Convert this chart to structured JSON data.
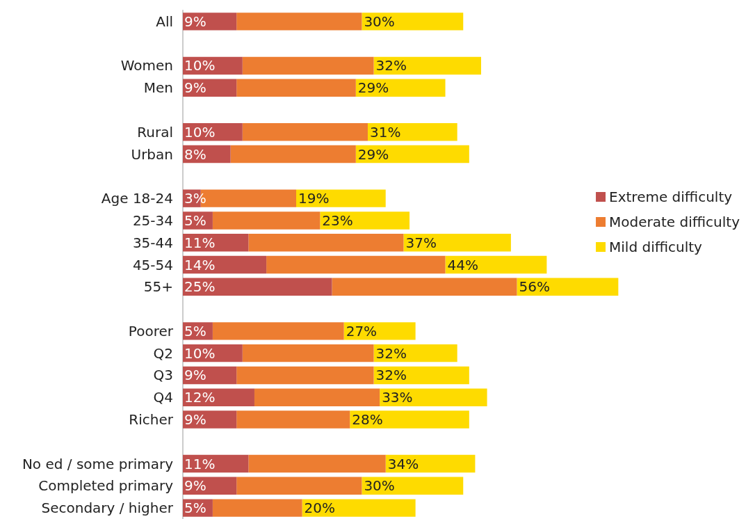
{
  "chart_data": {
    "type": "bar",
    "orientation": "horizontal",
    "stacked": true,
    "legend": "right",
    "categories": [
      "All",
      null,
      "Women",
      "Men",
      null,
      "Rural",
      "Urban",
      null,
      "Age 18-24",
      "25-34",
      "35-44",
      "45-54",
      "55+",
      null,
      "Poorer",
      "Q2",
      "Q3",
      "Q4",
      "Richer",
      null,
      "No ed / some primary",
      "Completed primary",
      "Secondary / higher"
    ],
    "series": [
      {
        "name": "Extreme difficulty",
        "color": "#c0504d",
        "values": [
          9,
          null,
          10,
          9,
          null,
          10,
          8,
          null,
          3,
          5,
          11,
          14,
          25,
          null,
          5,
          10,
          9,
          12,
          9,
          null,
          11,
          9,
          5
        ],
        "value_labels": [
          "9%",
          null,
          "10%",
          "9%",
          null,
          "10%",
          "8%",
          null,
          "3%",
          "5%",
          "11%",
          "14%",
          "25%",
          null,
          "5%",
          "10%",
          "9%",
          "12%",
          "9%",
          null,
          "11%",
          "9%",
          "5%"
        ]
      },
      {
        "name": "Moderate difficulty",
        "color": "#ed7d31",
        "values": [
          21,
          null,
          22,
          20,
          null,
          21,
          21,
          null,
          16,
          18,
          26,
          30,
          31,
          null,
          22,
          22,
          23,
          21,
          19,
          null,
          23,
          21,
          15
        ]
      },
      {
        "name": "Mild difficulty",
        "color": "#fedb00",
        "values": [
          17,
          null,
          18,
          15,
          null,
          15,
          19,
          null,
          15,
          15,
          18,
          17,
          17,
          null,
          12,
          14,
          16,
          18,
          20,
          null,
          15,
          17,
          19
        ]
      }
    ],
    "annotations": [
      {
        "text": "30%",
        "x": 30,
        "y": "All"
      },
      {
        "text": "32%",
        "x": 32,
        "y": "Women"
      },
      {
        "text": "29%",
        "x": 29,
        "y": "Men"
      },
      {
        "text": "31%",
        "x": 31,
        "y": "Rural"
      },
      {
        "text": "29%",
        "x": 29,
        "y": "Urban"
      },
      {
        "text": "19%",
        "x": 19,
        "y": "Age 18-24"
      },
      {
        "text": "23%",
        "x": 23,
        "y": "25-34"
      },
      {
        "text": "37%",
        "x": 37,
        "y": "35-44"
      },
      {
        "text": "44%",
        "x": 44,
        "y": "45-54"
      },
      {
        "text": "56%",
        "x": 56,
        "y": "55+"
      },
      {
        "text": "27%",
        "x": 27,
        "y": "Poorer"
      },
      {
        "text": "32%",
        "x": 32,
        "y": "Q2"
      },
      {
        "text": "32%",
        "x": 32,
        "y": "Q3"
      },
      {
        "text": "33%",
        "x": 33,
        "y": "Q4"
      },
      {
        "text": "28%",
        "x": 28,
        "y": "Richer"
      },
      {
        "text": "34%",
        "x": 34,
        "y": "No ed / some primary"
      },
      {
        "text": "30%",
        "x": 30,
        "y": "Completed primary"
      },
      {
        "text": "20%",
        "x": 20,
        "y": "Secondary / higher"
      }
    ]
  }
}
